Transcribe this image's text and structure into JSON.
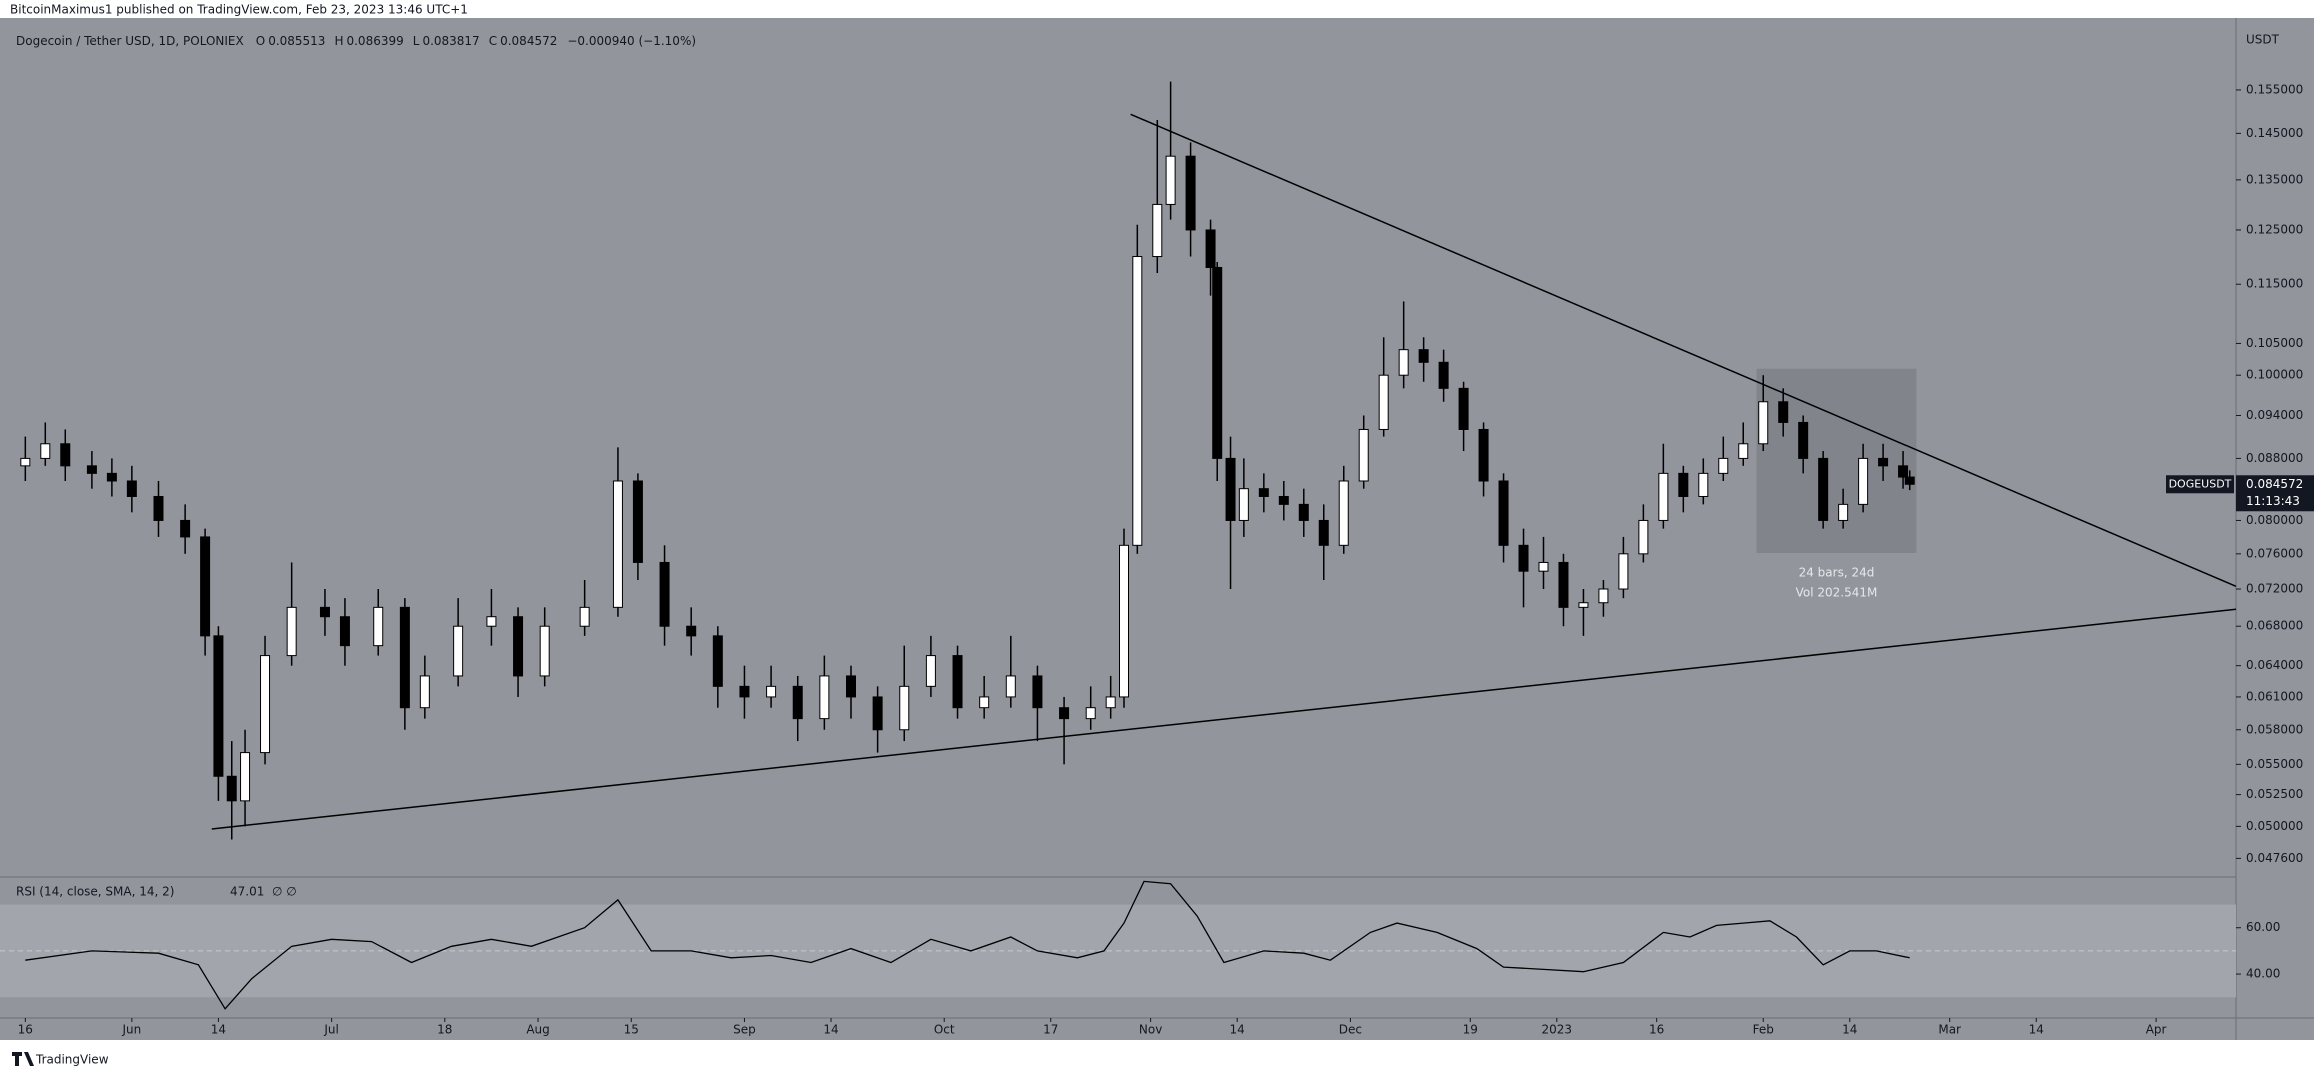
{
  "header": {
    "publisher": "BitcoinMaximus1 published on TradingView.com, Feb 23, 2023 13:46 UTC+1"
  },
  "legend": {
    "symbol": "Dogecoin / Tether USD, 1D, POLONIEX",
    "ohlc": [
      {
        "label": "O",
        "value": 0.085513
      },
      {
        "label": "H",
        "value": 0.086399
      },
      {
        "label": "L",
        "value": 0.083817
      },
      {
        "label": "C",
        "value": 0.084572
      }
    ],
    "change": "−0.000940 (−1.10%)"
  },
  "price_tag": {
    "symbol": "DOGEUSDT",
    "price": 0.084572,
    "countdown": "11:13:43"
  },
  "footer": {
    "brand": "TradingView"
  },
  "chart_data": {
    "type": "candlestick",
    "y_axis_label": "USDT",
    "log_scale": true,
    "up_color": "#ffffff",
    "down_color": "#000000",
    "xlim": [
      -2,
      332
    ],
    "ylim": [
      0.0464,
      0.171
    ],
    "xticks": [
      {
        "value": 0,
        "label": "16"
      },
      {
        "value": 16,
        "label": "Jun"
      },
      {
        "value": 29,
        "label": "14"
      },
      {
        "value": 46,
        "label": "Jul"
      },
      {
        "value": 63,
        "label": "18"
      },
      {
        "value": 77,
        "label": "Aug"
      },
      {
        "value": 91,
        "label": "15"
      },
      {
        "value": 108,
        "label": "Sep"
      },
      {
        "value": 121,
        "label": "14"
      },
      {
        "value": 138,
        "label": "Oct"
      },
      {
        "value": 154,
        "label": "17"
      },
      {
        "value": 169,
        "label": "Nov"
      },
      {
        "value": 182,
        "label": "14"
      },
      {
        "value": 199,
        "label": "Dec"
      },
      {
        "value": 217,
        "label": "19"
      },
      {
        "value": 230,
        "label": "2023"
      },
      {
        "value": 245,
        "label": "16"
      },
      {
        "value": 261,
        "label": "Feb"
      },
      {
        "value": 274,
        "label": "14"
      },
      {
        "value": 289,
        "label": "Mar"
      },
      {
        "value": 302,
        "label": "14"
      },
      {
        "value": 320,
        "label": "Apr"
      }
    ],
    "yticks": [
      {
        "value": 0.0476,
        "label": "0.047600"
      },
      {
        "value": 0.05,
        "label": "0.050000"
      },
      {
        "value": 0.0525,
        "label": "0.052500"
      },
      {
        "value": 0.055,
        "label": "0.055000"
      },
      {
        "value": 0.058,
        "label": "0.058000"
      },
      {
        "value": 0.061,
        "label": "0.061000"
      },
      {
        "value": 0.064,
        "label": "0.064000"
      },
      {
        "value": 0.068,
        "label": "0.068000"
      },
      {
        "value": 0.072,
        "label": "0.072000"
      },
      {
        "value": 0.076,
        "label": "0.076000"
      },
      {
        "value": 0.08,
        "label": "0.080000"
      },
      {
        "value": 0.088,
        "label": "0.088000"
      },
      {
        "value": 0.094,
        "label": "0.094000"
      },
      {
        "value": 0.1,
        "label": "0.100000"
      },
      {
        "value": 0.105,
        "label": "0.105000"
      },
      {
        "value": 0.115,
        "label": "0.115000"
      },
      {
        "value": 0.125,
        "label": "0.125000"
      },
      {
        "value": 0.135,
        "label": "0.135000"
      },
      {
        "value": 0.145,
        "label": "0.145000"
      },
      {
        "value": 0.155,
        "label": "0.155000"
      }
    ],
    "candles": [
      {
        "x": 0,
        "open": 0.087,
        "high": 0.091,
        "low": 0.085,
        "close": 0.088
      },
      {
        "x": 3,
        "open": 0.088,
        "high": 0.093,
        "low": 0.087,
        "close": 0.09
      },
      {
        "x": 6,
        "open": 0.09,
        "high": 0.092,
        "low": 0.085,
        "close": 0.087
      },
      {
        "x": 10,
        "open": 0.087,
        "high": 0.089,
        "low": 0.084,
        "close": 0.086
      },
      {
        "x": 13,
        "open": 0.086,
        "high": 0.088,
        "low": 0.083,
        "close": 0.085
      },
      {
        "x": 16,
        "open": 0.085,
        "high": 0.087,
        "low": 0.081,
        "close": 0.083
      },
      {
        "x": 20,
        "open": 0.083,
        "high": 0.085,
        "low": 0.078,
        "close": 0.08
      },
      {
        "x": 24,
        "open": 0.08,
        "high": 0.082,
        "low": 0.076,
        "close": 0.078
      },
      {
        "x": 27,
        "open": 0.078,
        "high": 0.079,
        "low": 0.065,
        "close": 0.067
      },
      {
        "x": 29,
        "open": 0.067,
        "high": 0.068,
        "low": 0.052,
        "close": 0.054
      },
      {
        "x": 31,
        "open": 0.054,
        "high": 0.057,
        "low": 0.049,
        "close": 0.052
      },
      {
        "x": 33,
        "open": 0.052,
        "high": 0.058,
        "low": 0.05,
        "close": 0.056
      },
      {
        "x": 36,
        "open": 0.056,
        "high": 0.067,
        "low": 0.055,
        "close": 0.065
      },
      {
        "x": 40,
        "open": 0.065,
        "high": 0.075,
        "low": 0.064,
        "close": 0.07
      },
      {
        "x": 45,
        "open": 0.07,
        "high": 0.072,
        "low": 0.067,
        "close": 0.069
      },
      {
        "x": 48,
        "open": 0.069,
        "high": 0.071,
        "low": 0.064,
        "close": 0.066
      },
      {
        "x": 53,
        "open": 0.066,
        "high": 0.072,
        "low": 0.065,
        "close": 0.07
      },
      {
        "x": 57,
        "open": 0.07,
        "high": 0.071,
        "low": 0.058,
        "close": 0.06
      },
      {
        "x": 60,
        "open": 0.06,
        "high": 0.065,
        "low": 0.059,
        "close": 0.063
      },
      {
        "x": 65,
        "open": 0.063,
        "high": 0.071,
        "low": 0.062,
        "close": 0.068
      },
      {
        "x": 70,
        "open": 0.068,
        "high": 0.072,
        "low": 0.066,
        "close": 0.069
      },
      {
        "x": 74,
        "open": 0.069,
        "high": 0.07,
        "low": 0.061,
        "close": 0.063
      },
      {
        "x": 78,
        "open": 0.063,
        "high": 0.07,
        "low": 0.062,
        "close": 0.068
      },
      {
        "x": 84,
        "open": 0.068,
        "high": 0.073,
        "low": 0.067,
        "close": 0.07
      },
      {
        "x": 89,
        "open": 0.07,
        "high": 0.0895,
        "low": 0.069,
        "close": 0.085
      },
      {
        "x": 92,
        "open": 0.085,
        "high": 0.086,
        "low": 0.073,
        "close": 0.075
      },
      {
        "x": 96,
        "open": 0.075,
        "high": 0.077,
        "low": 0.066,
        "close": 0.068
      },
      {
        "x": 100,
        "open": 0.068,
        "high": 0.07,
        "low": 0.065,
        "close": 0.067
      },
      {
        "x": 104,
        "open": 0.067,
        "high": 0.068,
        "low": 0.06,
        "close": 0.062
      },
      {
        "x": 108,
        "open": 0.062,
        "high": 0.064,
        "low": 0.059,
        "close": 0.061
      },
      {
        "x": 112,
        "open": 0.061,
        "high": 0.064,
        "low": 0.06,
        "close": 0.062
      },
      {
        "x": 116,
        "open": 0.062,
        "high": 0.063,
        "low": 0.057,
        "close": 0.059
      },
      {
        "x": 120,
        "open": 0.059,
        "high": 0.065,
        "low": 0.058,
        "close": 0.063
      },
      {
        "x": 124,
        "open": 0.063,
        "high": 0.064,
        "low": 0.059,
        "close": 0.061
      },
      {
        "x": 128,
        "open": 0.061,
        "high": 0.062,
        "low": 0.056,
        "close": 0.058
      },
      {
        "x": 132,
        "open": 0.058,
        "high": 0.066,
        "low": 0.057,
        "close": 0.062
      },
      {
        "x": 136,
        "open": 0.062,
        "high": 0.067,
        "low": 0.061,
        "close": 0.065
      },
      {
        "x": 140,
        "open": 0.065,
        "high": 0.066,
        "low": 0.059,
        "close": 0.06
      },
      {
        "x": 144,
        "open": 0.06,
        "high": 0.063,
        "low": 0.059,
        "close": 0.061
      },
      {
        "x": 148,
        "open": 0.061,
        "high": 0.067,
        "low": 0.06,
        "close": 0.063
      },
      {
        "x": 152,
        "open": 0.063,
        "high": 0.064,
        "low": 0.057,
        "close": 0.06
      },
      {
        "x": 156,
        "open": 0.06,
        "high": 0.061,
        "low": 0.055,
        "close": 0.059
      },
      {
        "x": 160,
        "open": 0.059,
        "high": 0.062,
        "low": 0.058,
        "close": 0.06
      },
      {
        "x": 163,
        "open": 0.06,
        "high": 0.063,
        "low": 0.059,
        "close": 0.061
      },
      {
        "x": 165,
        "open": 0.061,
        "high": 0.079,
        "low": 0.06,
        "close": 0.077
      },
      {
        "x": 167,
        "open": 0.077,
        "high": 0.126,
        "low": 0.076,
        "close": 0.12
      },
      {
        "x": 170,
        "open": 0.12,
        "high": 0.148,
        "low": 0.117,
        "close": 0.13
      },
      {
        "x": 172,
        "open": 0.13,
        "high": 0.157,
        "low": 0.127,
        "close": 0.14
      },
      {
        "x": 175,
        "open": 0.14,
        "high": 0.143,
        "low": 0.12,
        "close": 0.125
      },
      {
        "x": 178,
        "open": 0.125,
        "high": 0.127,
        "low": 0.113,
        "close": 0.118
      },
      {
        "x": 179,
        "open": 0.118,
        "high": 0.119,
        "low": 0.085,
        "close": 0.088
      },
      {
        "x": 181,
        "open": 0.088,
        "high": 0.091,
        "low": 0.072,
        "close": 0.08
      },
      {
        "x": 183,
        "open": 0.08,
        "high": 0.088,
        "low": 0.078,
        "close": 0.084
      },
      {
        "x": 186,
        "open": 0.084,
        "high": 0.086,
        "low": 0.081,
        "close": 0.083
      },
      {
        "x": 189,
        "open": 0.083,
        "high": 0.085,
        "low": 0.08,
        "close": 0.082
      },
      {
        "x": 192,
        "open": 0.082,
        "high": 0.084,
        "low": 0.078,
        "close": 0.08
      },
      {
        "x": 195,
        "open": 0.08,
        "high": 0.082,
        "low": 0.073,
        "close": 0.077
      },
      {
        "x": 198,
        "open": 0.077,
        "high": 0.087,
        "low": 0.076,
        "close": 0.085
      },
      {
        "x": 201,
        "open": 0.085,
        "high": 0.094,
        "low": 0.084,
        "close": 0.092
      },
      {
        "x": 204,
        "open": 0.092,
        "high": 0.106,
        "low": 0.091,
        "close": 0.1
      },
      {
        "x": 207,
        "open": 0.1,
        "high": 0.112,
        "low": 0.098,
        "close": 0.104
      },
      {
        "x": 210,
        "open": 0.104,
        "high": 0.106,
        "low": 0.099,
        "close": 0.102
      },
      {
        "x": 213,
        "open": 0.102,
        "high": 0.104,
        "low": 0.096,
        "close": 0.098
      },
      {
        "x": 216,
        "open": 0.098,
        "high": 0.099,
        "low": 0.089,
        "close": 0.092
      },
      {
        "x": 219,
        "open": 0.092,
        "high": 0.093,
        "low": 0.083,
        "close": 0.085
      },
      {
        "x": 222,
        "open": 0.085,
        "high": 0.086,
        "low": 0.075,
        "close": 0.077
      },
      {
        "x": 225,
        "open": 0.077,
        "high": 0.079,
        "low": 0.07,
        "close": 0.074
      },
      {
        "x": 228,
        "open": 0.074,
        "high": 0.078,
        "low": 0.072,
        "close": 0.075
      },
      {
        "x": 231,
        "open": 0.075,
        "high": 0.076,
        "low": 0.068,
        "close": 0.07
      },
      {
        "x": 234,
        "open": 0.07,
        "high": 0.072,
        "low": 0.067,
        "close": 0.0705
      },
      {
        "x": 237,
        "open": 0.0705,
        "high": 0.073,
        "low": 0.069,
        "close": 0.072
      },
      {
        "x": 240,
        "open": 0.072,
        "high": 0.078,
        "low": 0.071,
        "close": 0.076
      },
      {
        "x": 243,
        "open": 0.076,
        "high": 0.082,
        "low": 0.075,
        "close": 0.08
      },
      {
        "x": 246,
        "open": 0.08,
        "high": 0.09,
        "low": 0.079,
        "close": 0.086
      },
      {
        "x": 249,
        "open": 0.086,
        "high": 0.087,
        "low": 0.081,
        "close": 0.083
      },
      {
        "x": 252,
        "open": 0.083,
        "high": 0.088,
        "low": 0.082,
        "close": 0.086
      },
      {
        "x": 255,
        "open": 0.086,
        "high": 0.091,
        "low": 0.085,
        "close": 0.088
      },
      {
        "x": 258,
        "open": 0.088,
        "high": 0.093,
        "low": 0.087,
        "close": 0.09
      },
      {
        "x": 261,
        "open": 0.09,
        "high": 0.1,
        "low": 0.089,
        "close": 0.096
      },
      {
        "x": 264,
        "open": 0.096,
        "high": 0.098,
        "low": 0.091,
        "close": 0.093
      },
      {
        "x": 267,
        "open": 0.093,
        "high": 0.094,
        "low": 0.086,
        "close": 0.088
      },
      {
        "x": 270,
        "open": 0.088,
        "high": 0.089,
        "low": 0.079,
        "close": 0.08
      },
      {
        "x": 273,
        "open": 0.08,
        "high": 0.084,
        "low": 0.079,
        "close": 0.082
      },
      {
        "x": 276,
        "open": 0.082,
        "high": 0.09,
        "low": 0.081,
        "close": 0.088
      },
      {
        "x": 279,
        "open": 0.088,
        "high": 0.09,
        "low": 0.085,
        "close": 0.087
      },
      {
        "x": 282,
        "open": 0.087,
        "high": 0.089,
        "low": 0.084,
        "close": 0.085513
      },
      {
        "x": 283,
        "open": 0.085513,
        "high": 0.086399,
        "low": 0.083817,
        "close": 0.084572
      }
    ],
    "trendlines": [
      {
        "x": [
          166,
          332
        ],
        "y": [
          0.1493,
          0.0723
        ]
      },
      {
        "x": [
          28,
          332
        ],
        "y": [
          0.0498,
          0.0698
        ]
      }
    ],
    "measure": {
      "x": [
        260,
        284
      ],
      "y": [
        0.0761,
        0.101
      ],
      "label": "24 bars, 24d",
      "volume": "Vol 202.541M"
    },
    "rsi": {
      "label": "RSI (14, close, SMA, 14, 2)",
      "last": 47.01,
      "flags": "∅ ∅",
      "color": "#000000",
      "ylim": [
        21.9,
        80.6
      ],
      "yticks": [
        {
          "value": 60,
          "label": "60.00"
        },
        {
          "value": 40,
          "label": "40.00"
        }
      ],
      "band": [
        30,
        70
      ],
      "midline": 50,
      "x": [
        0,
        10,
        20,
        26,
        30,
        34,
        40,
        46,
        52,
        58,
        64,
        70,
        76,
        84,
        89,
        94,
        100,
        106,
        112,
        118,
        124,
        130,
        136,
        142,
        148,
        152,
        158,
        162,
        165,
        168,
        172,
        176,
        180,
        186,
        192,
        196,
        202,
        206,
        212,
        218,
        222,
        228,
        234,
        240,
        246,
        250,
        254,
        258,
        262,
        266,
        270,
        274,
        278,
        283
      ],
      "values": [
        46,
        50,
        49,
        44,
        25,
        38,
        52,
        55,
        54,
        45,
        52,
        55,
        52,
        60,
        72,
        50,
        50,
        47,
        48,
        45,
        51,
        45,
        55,
        50,
        56,
        50,
        47,
        50,
        62,
        80,
        79,
        65,
        45,
        50,
        49,
        46,
        58,
        62,
        58,
        51,
        43,
        42,
        41,
        45,
        58,
        56,
        61,
        62,
        63,
        56,
        44,
        50,
        50,
        47.01
      ]
    }
  }
}
